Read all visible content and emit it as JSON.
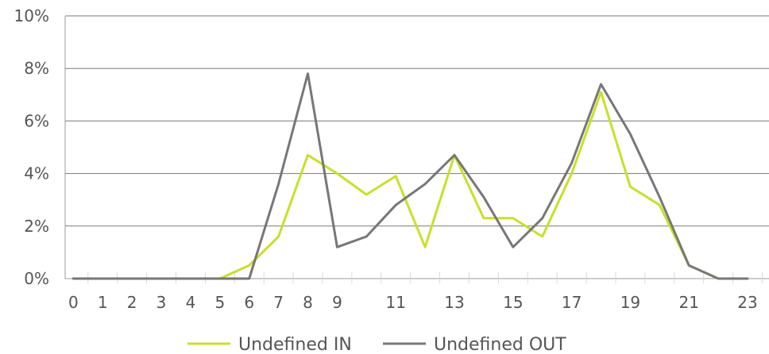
{
  "chart_data": {
    "type": "line",
    "categories": [
      "0",
      "1",
      "2",
      "3",
      "4",
      "5",
      "6",
      "7",
      "8",
      "9",
      "10",
      "11",
      "12",
      "13",
      "14",
      "15",
      "16",
      "17",
      "18",
      "19",
      "20",
      "21",
      "22",
      "23"
    ],
    "x_tick_labels": [
      "0",
      "1",
      "2",
      "3",
      "4",
      "5",
      "6",
      "7",
      "8",
      "9",
      "11",
      "13",
      "15",
      "17",
      "19",
      "21",
      "23"
    ],
    "y_tick_labels": [
      "0%",
      "2%",
      "4%",
      "6%",
      "8%",
      "10%"
    ],
    "ylim": [
      0,
      10
    ],
    "y_ticks": [
      0,
      2,
      4,
      6,
      8,
      10
    ],
    "grid": true,
    "legend_position": "bottom",
    "series": [
      {
        "name": "Undefined IN",
        "color": "#c8e02a",
        "values": [
          0,
          0,
          0,
          0,
          0,
          0,
          0.5,
          1.6,
          4.7,
          4.0,
          3.2,
          3.9,
          1.2,
          4.7,
          2.3,
          2.3,
          1.6,
          4.0,
          7.1,
          3.5,
          2.8,
          0.5,
          0,
          0
        ]
      },
      {
        "name": "Undefined OUT",
        "color": "#777777",
        "values": [
          0,
          0,
          0,
          0,
          0,
          0,
          0,
          3.6,
          7.8,
          1.2,
          1.6,
          2.8,
          3.6,
          4.7,
          3.1,
          1.2,
          2.3,
          4.4,
          7.4,
          5.5,
          3.1,
          0.5,
          0,
          0
        ]
      }
    ]
  }
}
